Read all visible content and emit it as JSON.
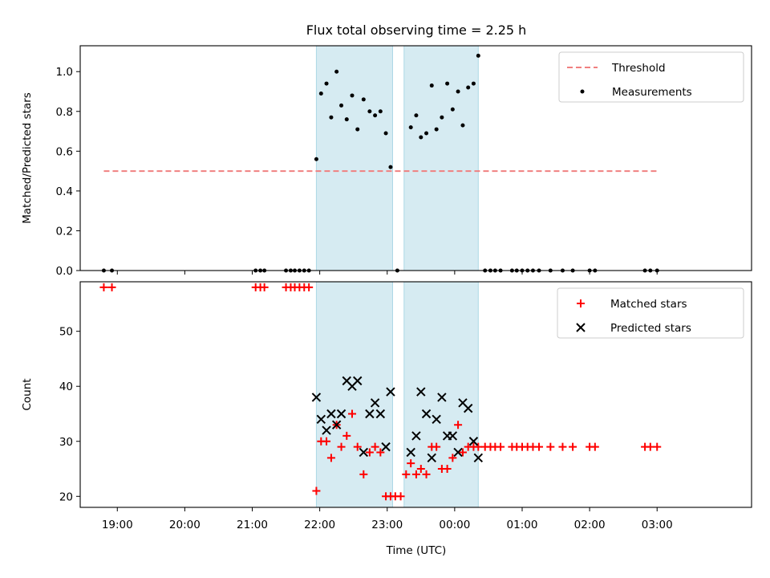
{
  "chart_data": {
    "type": "scatter",
    "title": "Flux total observing time = 2.25 h",
    "xlabel": "Time (UTC)",
    "x_tick_labels": [
      "19:00",
      "20:00",
      "21:00",
      "22:00",
      "23:00",
      "00:00",
      "01:00",
      "02:00",
      "03:00"
    ],
    "x_tick_hours": [
      19,
      20,
      21,
      22,
      23,
      24,
      25,
      26,
      27
    ],
    "xlim": [
      18.45,
      28.4
    ],
    "shaded_intervals": [
      [
        21.95,
        23.08
      ],
      [
        23.25,
        24.35
      ]
    ],
    "colors": {
      "threshold": "#f08080",
      "matched": "#ff0000",
      "predicted": "#000000",
      "measurements": "#000000",
      "shade": "#add8e6"
    },
    "panels": [
      {
        "ylabel": "Matched/Predicted stars",
        "ylim": [
          0,
          1.13
        ],
        "y_ticks": [
          0.0,
          0.2,
          0.4,
          0.6,
          0.8,
          1.0
        ],
        "y_tick_labels": [
          "0.0",
          "0.2",
          "0.4",
          "0.6",
          "0.8",
          "1.0"
        ],
        "legend": {
          "position": "top-right",
          "entries": [
            "Threshold",
            "Measurements"
          ]
        },
        "series": [
          {
            "name": "Threshold",
            "kind": "dashed-line",
            "x": [
              18.8,
              27.0
            ],
            "y": [
              0.5,
              0.5
            ]
          },
          {
            "name": "Measurements",
            "kind": "dot",
            "x": [
              18.8,
              18.92,
              21.05,
              21.12,
              21.18,
              21.5,
              21.57,
              21.63,
              21.7,
              21.77,
              21.84,
              21.95,
              22.02,
              22.1,
              22.17,
              22.25,
              22.32,
              22.4,
              22.48,
              22.56,
              22.65,
              22.74,
              22.82,
              22.9,
              22.98,
              23.05,
              23.15,
              23.35,
              23.43,
              23.5,
              23.58,
              23.66,
              23.73,
              23.81,
              23.89,
              23.97,
              24.05,
              24.12,
              24.2,
              24.28,
              24.35,
              24.45,
              24.53,
              24.6,
              24.68,
              24.85,
              24.92,
              25.0,
              25.08,
              25.16,
              25.25,
              25.42,
              25.6,
              25.75,
              26.0,
              26.08,
              26.82,
              26.9,
              27.0
            ],
            "y": [
              0,
              0,
              0,
              0,
              0,
              0,
              0,
              0,
              0,
              0,
              0,
              0.56,
              0.89,
              0.94,
              0.77,
              1.0,
              0.83,
              0.76,
              0.88,
              0.71,
              0.86,
              0.8,
              0.78,
              0.8,
              0.69,
              0.52,
              0.0,
              0.72,
              0.78,
              0.67,
              0.69,
              0.93,
              0.71,
              0.77,
              0.94,
              0.81,
              0.9,
              0.73,
              0.92,
              0.94,
              1.08,
              0,
              0,
              0,
              0,
              0,
              0,
              0,
              0,
              0,
              0,
              0,
              0,
              0,
              0,
              0,
              0,
              0,
              0
            ]
          }
        ]
      },
      {
        "ylabel": "Count",
        "ylim": [
          18,
          59
        ],
        "y_ticks": [
          20,
          30,
          40,
          50
        ],
        "y_tick_labels": [
          "20",
          "30",
          "40",
          "50"
        ],
        "legend": {
          "position": "top-right",
          "entries": [
            "Matched stars",
            "Predicted stars"
          ]
        },
        "series": [
          {
            "name": "Matched stars",
            "kind": "plus",
            "x": [
              18.8,
              18.92,
              21.05,
              21.12,
              21.18,
              21.5,
              21.57,
              21.63,
              21.7,
              21.77,
              21.84,
              21.95,
              22.02,
              22.1,
              22.17,
              22.25,
              22.32,
              22.4,
              22.48,
              22.56,
              22.65,
              22.74,
              22.82,
              22.9,
              22.98,
              23.05,
              23.12,
              23.2,
              23.28,
              23.35,
              23.43,
              23.5,
              23.58,
              23.66,
              23.73,
              23.81,
              23.89,
              23.97,
              24.05,
              24.12,
              24.2,
              24.28,
              24.35,
              24.45,
              24.53,
              24.6,
              24.68,
              24.85,
              24.92,
              25.0,
              25.08,
              25.16,
              25.25,
              25.42,
              25.6,
              25.75,
              26.0,
              26.08,
              26.82,
              26.9,
              27.0
            ],
            "y": [
              58,
              58,
              58,
              58,
              58,
              58,
              58,
              58,
              58,
              58,
              58,
              21,
              30,
              30,
              27,
              33,
              29,
              31,
              35,
              29,
              24,
              28,
              29,
              28,
              20,
              20,
              20,
              20,
              24,
              26,
              24,
              25,
              24,
              29,
              29,
              25,
              25,
              27,
              33,
              28,
              29,
              29,
              29,
              29,
              29,
              29,
              29,
              29,
              29,
              29,
              29,
              29,
              29,
              29,
              29,
              29,
              29,
              29,
              29,
              29,
              29
            ]
          },
          {
            "name": "Predicted stars",
            "kind": "cross",
            "x": [
              21.95,
              22.02,
              22.1,
              22.17,
              22.25,
              22.32,
              22.4,
              22.48,
              22.56,
              22.65,
              22.74,
              22.82,
              22.9,
              22.98,
              23.05,
              23.35,
              23.43,
              23.5,
              23.58,
              23.66,
              23.73,
              23.81,
              23.89,
              23.97,
              24.05,
              24.12,
              24.2,
              24.28,
              24.35
            ],
            "y": [
              38,
              34,
              32,
              35,
              33,
              35,
              41,
              40,
              41,
              28,
              35,
              37,
              35,
              29,
              39,
              28,
              31,
              39,
              35,
              27,
              34,
              38,
              31,
              31,
              28,
              37,
              36,
              30,
              27
            ]
          }
        ]
      }
    ]
  }
}
